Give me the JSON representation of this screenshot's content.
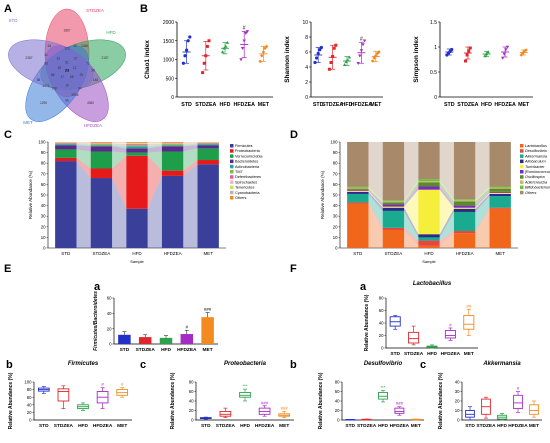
{
  "panel_labels": {
    "A": "A",
    "B": "B",
    "C": "C",
    "D": "D",
    "E": "E",
    "F": "F",
    "Ea": "a",
    "Eb": "b",
    "Ec": "c",
    "Fa": "a",
    "Fb": "b",
    "Fc": "c"
  },
  "venn": {
    "sets": [
      {
        "name": "STD",
        "color": "#7b6fd0"
      },
      {
        "name": "STDZEA",
        "color": "#e8456b"
      },
      {
        "name": "HFD",
        "color": "#2aa35a"
      },
      {
        "name": "HFDZEA",
        "color": "#9b4fc2"
      },
      {
        "name": "MET",
        "color": "#3b7bd6"
      }
    ],
    "numbers": [
      "1867",
      "2157",
      "4360",
      "1290",
      "2387",
      "1346",
      "148",
      "96",
      "58",
      "64",
      "123",
      "72",
      "94",
      "108",
      "86",
      "42",
      "38",
      "2956",
      "4471",
      "31",
      "27",
      "25",
      "19",
      "86",
      "33",
      "51",
      "12",
      "68",
      "17",
      "45",
      "23"
    ]
  },
  "groups": [
    "STD",
    "STDZEA",
    "HFD",
    "HFDZEA",
    "MET"
  ],
  "group_colors": [
    "#2230c8",
    "#e0262c",
    "#2da04a",
    "#a62bc4",
    "#f28a1e"
  ],
  "alpha_labels": {
    "chao1": "Chao1 index",
    "shannon": "Shannon index",
    "simpson": "Simpson index",
    "sig": "#"
  },
  "stack_labels": {
    "ylabel_C": "Relative Abundance (%)",
    "ylabel_D": "Relative Abundance (%)",
    "xlabel": "Sample"
  },
  "boxplot_labels": {
    "firm_b": "Firmicutes",
    "proteo_c": "Proteobacteria",
    "lacto_a": "Lactobacillus",
    "desulfo_b": "Desulfovibrio",
    "akker_c": "Akkermansia",
    "ylab": "Relative Abundance (%)",
    "fb": "Firmicutes/Bacteroidetes",
    "sig1": "#",
    "sig2": "##",
    "sig3": "###",
    "sig4": "***",
    "sig5": "**"
  },
  "chart_data": [
    {
      "panel": "B",
      "type": "scatter",
      "title": "Chao1 index",
      "ylim": [
        0,
        2000
      ],
      "yticks": [
        0,
        500,
        1000,
        1500,
        2000
      ],
      "categories": [
        "STD",
        "STDZEA",
        "HFD",
        "HFDZEA",
        "MET"
      ],
      "series": [
        {
          "name": "STD",
          "mean": 1200,
          "sd": 300,
          "points": [
            900,
            1100,
            1250,
            1500,
            1600
          ]
        },
        {
          "name": "STDZEA",
          "mean": 1100,
          "sd": 380,
          "points": [
            650,
            900,
            1100,
            1350,
            1500
          ]
        },
        {
          "name": "HFD",
          "mean": 1300,
          "sd": 150,
          "points": [
            1200,
            1300,
            1350,
            1450
          ]
        },
        {
          "name": "HFDZEA",
          "mean": 1400,
          "sd": 350,
          "points": [
            1000,
            1300,
            1500,
            1700,
            1750
          ]
        },
        {
          "name": "MET",
          "mean": 1150,
          "sd": 200,
          "points": [
            950,
            1100,
            1200,
            1300,
            1350
          ]
        }
      ]
    },
    {
      "panel": "B",
      "type": "scatter",
      "title": "Shannon index",
      "ylim": [
        0,
        10
      ],
      "yticks": [
        0,
        2,
        4,
        6,
        8,
        10
      ],
      "categories": [
        "STD",
        "STDZEA",
        "HFD",
        "HFDZEA",
        "MET"
      ],
      "series": [
        {
          "name": "STD",
          "mean": 5.6,
          "sd": 1.0,
          "points": [
            4.6,
            5.2,
            5.8,
            6.3,
            6.6
          ]
        },
        {
          "name": "STDZEA",
          "mean": 5.3,
          "sd": 1.6,
          "points": [
            3.7,
            4.6,
            5.4,
            6.5,
            6.9
          ]
        },
        {
          "name": "HFD",
          "mean": 4.8,
          "sd": 0.6,
          "points": [
            4.3,
            4.7,
            4.9,
            5.3
          ]
        },
        {
          "name": "HFDZEA",
          "mean": 5.9,
          "sd": 1.4,
          "points": [
            4.5,
            5.5,
            6.2,
            7.0,
            7.5
          ]
        },
        {
          "name": "MET",
          "mean": 5.4,
          "sd": 0.7,
          "points": [
            4.8,
            5.2,
            5.5,
            5.8,
            6.0
          ]
        }
      ]
    },
    {
      "panel": "B",
      "type": "scatter",
      "title": "Simpson index",
      "ylim": [
        0,
        1.5
      ],
      "yticks": [
        0.0,
        0.5,
        1.0,
        1.5
      ],
      "categories": [
        "STD",
        "STDZEA",
        "HFD",
        "HFDZEA",
        "MET"
      ],
      "series": [
        {
          "name": "STD",
          "mean": 0.9,
          "sd": 0.06,
          "points": [
            0.84,
            0.88,
            0.91,
            0.95
          ]
        },
        {
          "name": "STDZEA",
          "mean": 0.88,
          "sd": 0.12,
          "points": [
            0.72,
            0.84,
            0.92,
            0.98
          ]
        },
        {
          "name": "HFD",
          "mean": 0.86,
          "sd": 0.05,
          "points": [
            0.82,
            0.86,
            0.9
          ]
        },
        {
          "name": "HFDZEA",
          "mean": 0.9,
          "sd": 0.1,
          "points": [
            0.78,
            0.86,
            0.95,
            1.0
          ]
        },
        {
          "name": "MET",
          "mean": 0.89,
          "sd": 0.05,
          "points": [
            0.84,
            0.88,
            0.92,
            0.94
          ]
        }
      ]
    },
    {
      "panel": "C",
      "type": "bar",
      "stacked": true,
      "ylim": [
        0,
        100
      ],
      "yticks": [
        0,
        10,
        20,
        30,
        40,
        50,
        60,
        70,
        80,
        90,
        100
      ],
      "categories": [
        "STD",
        "STDZEA",
        "HFD",
        "HFDZEA",
        "MET"
      ],
      "series": [
        {
          "name": "Firmicutes",
          "color": "#3a3f9a",
          "values": [
            82,
            66,
            37,
            68,
            79
          ]
        },
        {
          "name": "Proteobacteria",
          "color": "#e61a1a",
          "values": [
            3,
            9,
            50,
            5,
            4
          ]
        },
        {
          "name": "Verrucomicrobia",
          "color": "#1f9e4a",
          "values": [
            8,
            16,
            3,
            18,
            11
          ]
        },
        {
          "name": "Bacteroidetes",
          "color": "#5b2a8a",
          "values": [
            4,
            5,
            4,
            5,
            3
          ]
        },
        {
          "name": "Actinobacteria",
          "color": "#2f9e9e",
          "values": [
            1,
            1,
            2,
            1,
            1
          ]
        },
        {
          "name": "TM7",
          "color": "#7cc142",
          "values": [
            0.5,
            1,
            1,
            1,
            0.5
          ]
        },
        {
          "name": "Deferribacteres",
          "color": "#e05fa0",
          "values": [
            0.5,
            0.5,
            1,
            0.5,
            0.5
          ]
        },
        {
          "name": "Spirochaetes",
          "color": "#f7b2c8",
          "values": [
            0.3,
            0.3,
            0.5,
            0.3,
            0.3
          ]
        },
        {
          "name": "Tenericutes",
          "color": "#c8e06a",
          "values": [
            0.2,
            0.2,
            0.5,
            0.2,
            0.2
          ]
        },
        {
          "name": "Cyanobacteria",
          "color": "#b5b5b5",
          "values": [
            0.2,
            0.2,
            0.3,
            0.2,
            0.2
          ]
        },
        {
          "name": "Others",
          "color": "#f08a24",
          "values": [
            0.3,
            0.8,
            0.7,
            0.8,
            0.3
          ]
        }
      ],
      "xlabel": "Sample",
      "ylabel": "Relative Abundance (%)"
    },
    {
      "panel": "D",
      "type": "bar",
      "stacked": true,
      "ylim": [
        0,
        100
      ],
      "yticks": [
        0,
        10,
        20,
        30,
        40,
        50,
        60,
        70,
        80,
        90,
        100
      ],
      "categories": [
        "STD",
        "STDZEA",
        "HFD",
        "HFDZEA",
        "MET"
      ],
      "series": [
        {
          "name": "Lactobacillus",
          "color": "#f0661a",
          "values": [
            42,
            17,
            2,
            14,
            37
          ]
        },
        {
          "name": "Desulfovibrio",
          "color": "#e8453c",
          "values": [
            1,
            2,
            5,
            2,
            1
          ]
        },
        {
          "name": "Akkermansia",
          "color": "#1aaa90",
          "values": [
            8,
            16,
            3,
            18,
            11
          ]
        },
        {
          "name": "Allobaculum",
          "color": "#2a2a8a",
          "values": [
            2,
            3,
            3,
            3,
            2
          ]
        },
        {
          "name": "Turicibacter",
          "color": "#f5ee3a",
          "values": [
            1,
            1,
            42,
            1,
            1
          ]
        },
        {
          "name": "[Ruminococcus]",
          "color": "#7a2ac0",
          "values": [
            1,
            2,
            3,
            2,
            1
          ]
        },
        {
          "name": "Oscillospira",
          "color": "#5a8a2a",
          "values": [
            1,
            2,
            4,
            4,
            3
          ]
        },
        {
          "name": "Adlercreutzia",
          "color": "#c8b46a",
          "values": [
            1,
            1,
            1,
            1,
            1
          ]
        },
        {
          "name": "Bifidobacterium",
          "color": "#6fbf3f",
          "values": [
            1,
            1,
            2,
            1,
            1
          ]
        },
        {
          "name": "Others",
          "color": "#a88a6a",
          "values": [
            42,
            55,
            35,
            54,
            42
          ]
        }
      ],
      "xlabel": "Sample",
      "ylabel": "Relative Abundance (%)"
    },
    {
      "panel": "E-a",
      "type": "bar",
      "title": "",
      "ylabel": "Firmicutes/Bacteroidetes",
      "ylim": [
        0,
        60
      ],
      "yticks": [
        0,
        20,
        40,
        60
      ],
      "categories": [
        "STD",
        "STDZEA",
        "HFD",
        "HFDZEA",
        "MET"
      ],
      "values": [
        12,
        9,
        8,
        13,
        35
      ],
      "errors": [
        4,
        3,
        3,
        5,
        6
      ],
      "annotations": [
        "",
        "",
        "",
        "#",
        "###"
      ]
    },
    {
      "panel": "E-b",
      "type": "box",
      "title": "Firmicutes",
      "ylim": [
        0,
        100
      ],
      "yticks": [
        0,
        20,
        40,
        60,
        80,
        100
      ],
      "categories": [
        "STD",
        "STDZEA",
        "HFD",
        "HFDZEA",
        "MET"
      ],
      "boxes": [
        [
          70,
          76,
          80,
          84,
          88
        ],
        [
          30,
          50,
          75,
          82,
          90
        ],
        [
          25,
          30,
          35,
          40,
          45
        ],
        [
          30,
          45,
          60,
          75,
          85
        ],
        [
          60,
          65,
          72,
          80,
          85
        ]
      ],
      "annotations": [
        "",
        "",
        "",
        "#",
        "#"
      ]
    },
    {
      "panel": "E-c",
      "type": "box",
      "title": "Proteobacteria",
      "ylim": [
        0,
        80
      ],
      "yticks": [
        0,
        20,
        40,
        60,
        80
      ],
      "categories": [
        "STD",
        "STDZEA",
        "HFD",
        "HFDZEA",
        "MET"
      ],
      "boxes": [
        [
          2,
          3,
          4,
          5,
          6
        ],
        [
          5,
          8,
          12,
          18,
          25
        ],
        [
          40,
          48,
          52,
          58,
          65
        ],
        [
          8,
          12,
          18,
          25,
          30
        ],
        [
          5,
          8,
          10,
          13,
          18
        ]
      ],
      "annotations": [
        "",
        "",
        "***",
        "###",
        "###"
      ]
    },
    {
      "panel": "F-a",
      "type": "box",
      "title": "Lactobacillus",
      "ylim": [
        0,
        80
      ],
      "yticks": [
        0,
        20,
        40,
        60,
        80
      ],
      "categories": [
        "STD",
        "STDZEA",
        "HFD",
        "HFDZEA",
        "MET"
      ],
      "boxes": [
        [
          30,
          35,
          42,
          50,
          52
        ],
        [
          5,
          8,
          15,
          25,
          35
        ],
        [
          0,
          1,
          2,
          3,
          5
        ],
        [
          12,
          16,
          20,
          28,
          32
        ],
        [
          20,
          30,
          38,
          52,
          62
        ]
      ],
      "annotations": [
        "",
        "",
        "",
        "#",
        "##"
      ]
    },
    {
      "panel": "F-b",
      "type": "box",
      "title": "Desulfovibrio",
      "ylim": [
        0,
        80
      ],
      "yticks": [
        0,
        20,
        40,
        60,
        80
      ],
      "categories": [
        "STD",
        "STDZEA",
        "HFD",
        "HFDZEA",
        "MET"
      ],
      "boxes": [
        [
          0,
          0,
          0.5,
          1,
          1
        ],
        [
          0,
          0.5,
          1,
          1.5,
          2
        ],
        [
          38,
          44,
          50,
          58,
          62
        ],
        [
          10,
          14,
          18,
          25,
          28
        ],
        [
          0,
          0.5,
          1,
          1.5,
          2
        ]
      ],
      "annotations": [
        "",
        "",
        "***",
        "###",
        ""
      ]
    },
    {
      "panel": "F-c",
      "type": "box",
      "title": "Akkermansia",
      "ylim": [
        0,
        40
      ],
      "yticks": [
        0,
        10,
        20,
        30,
        40
      ],
      "categories": [
        "STD",
        "STDZEA",
        "HFD",
        "HFDZEA",
        "MET"
      ],
      "boxes": [
        [
          0,
          3,
          6,
          10,
          14
        ],
        [
          2,
          6,
          14,
          22,
          24
        ],
        [
          0,
          1,
          3,
          5,
          7
        ],
        [
          8,
          12,
          18,
          26,
          30
        ],
        [
          3,
          6,
          10,
          16,
          20
        ]
      ],
      "annotations": [
        "",
        "",
        "",
        "#",
        ""
      ]
    }
  ]
}
